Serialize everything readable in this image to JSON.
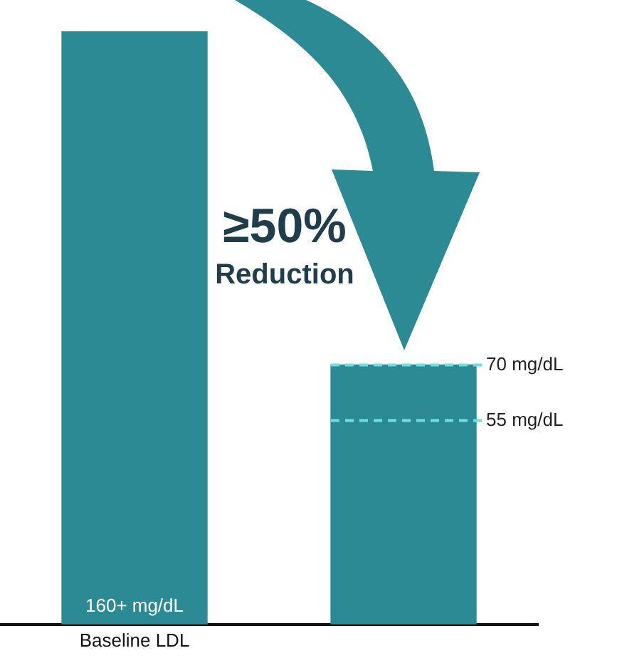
{
  "chart_data": {
    "type": "bar",
    "categories": [
      "Baseline LDL",
      null
    ],
    "values": [
      160,
      70
    ],
    "color": "#2b8a94",
    "ylim": [
      0,
      160
    ],
    "value_labels": [
      "160+ mg/dL",
      null
    ],
    "ref_lines": [
      {
        "axis": "y",
        "value": 70,
        "label": "70 mg/dL",
        "color": "#6fe0e4",
        "line_style": "dashed"
      },
      {
        "axis": "y",
        "value": 55,
        "label": "55 mg/dL",
        "color": "#6fe0e4",
        "line_style": "dashed"
      }
    ],
    "annotations": [
      "≥50%",
      "Reduction"
    ],
    "grid": false,
    "legend": false,
    "tick_labels": "x"
  }
}
